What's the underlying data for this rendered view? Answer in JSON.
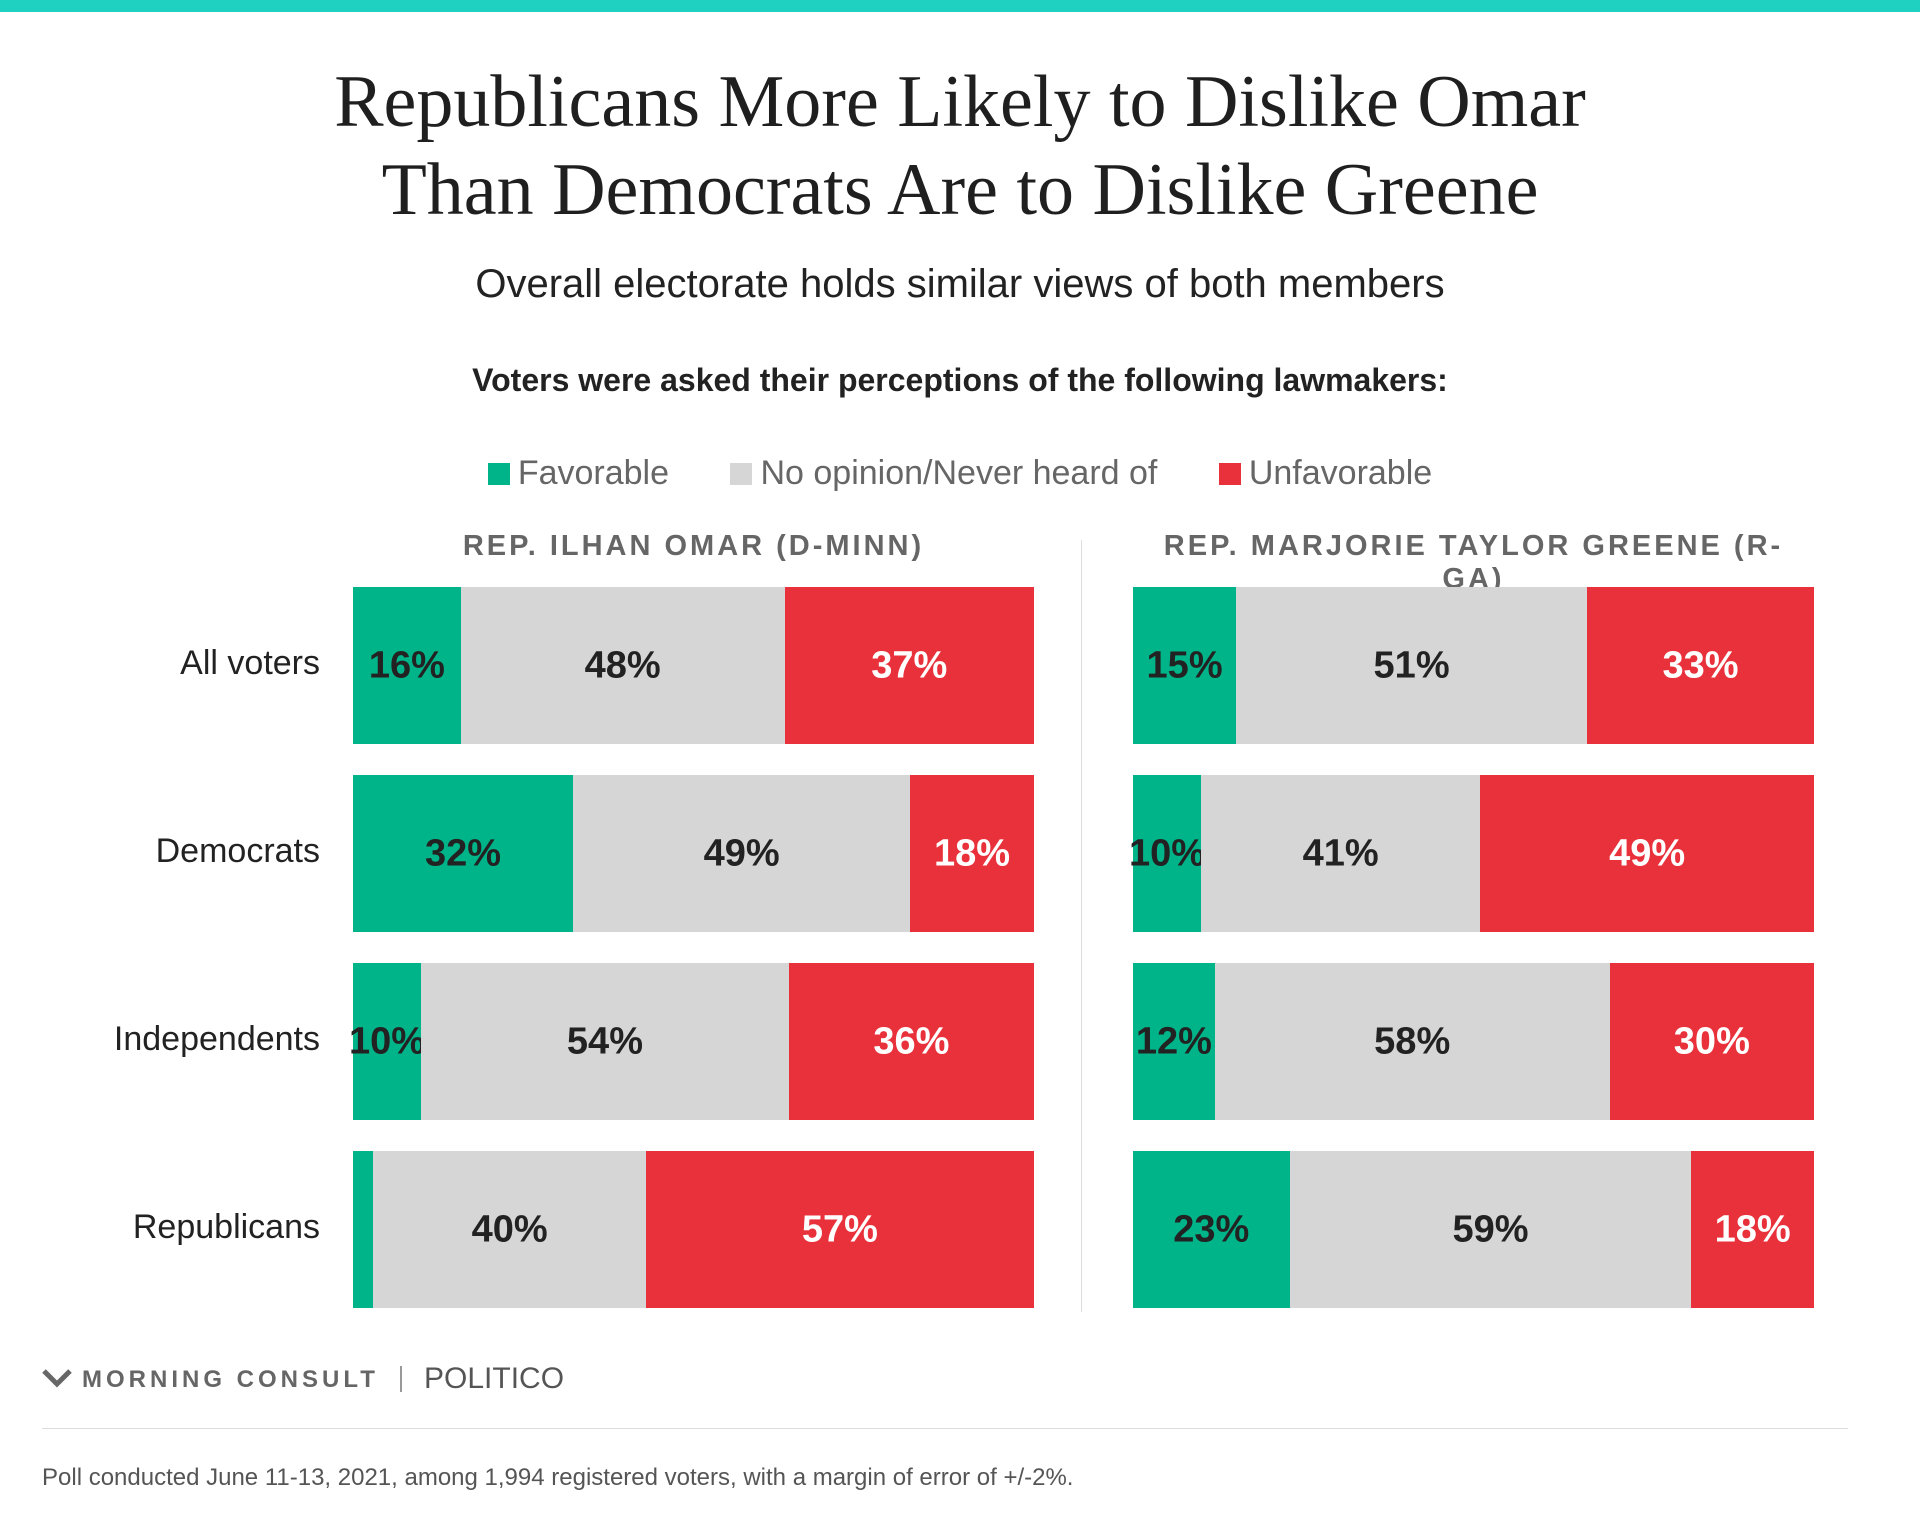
{
  "title_line1": "Republicans More Likely to Dislike Omar",
  "title_line2": "Than Democrats Are to Dislike Greene",
  "subtitle": "Overall electorate holds similar views of both members",
  "question": "Voters were asked their perceptions of the following lawmakers:",
  "colors": {
    "favorable": "#00b48a",
    "no_opinion": "#d6d6d6",
    "unfavorable": "#e8313a",
    "accent": "#1fd1c1"
  },
  "legend": [
    "Favorable",
    "No opinion/Never heard of",
    "Unfavorable"
  ],
  "chart_data": {
    "type": "bar",
    "orientation": "horizontal",
    "stacked": true,
    "normalized": true,
    "categories": [
      "All voters",
      "Democrats",
      "Independents",
      "Republicans"
    ],
    "segments": [
      "Favorable",
      "No opinion/Never heard of",
      "Unfavorable"
    ],
    "panels": [
      {
        "title": "REP. ILHAN OMAR (D-MINN)",
        "values": [
          [
            16,
            48,
            37
          ],
          [
            32,
            49,
            18
          ],
          [
            10,
            54,
            36
          ],
          [
            3,
            40,
            57
          ]
        ],
        "labels": [
          [
            "16%",
            "48%",
            "37%"
          ],
          [
            "32%",
            "49%",
            "18%"
          ],
          [
            "10%",
            "54%",
            "36%"
          ],
          [
            "",
            "40%",
            "57%"
          ]
        ]
      },
      {
        "title": "REP. MARJORIE TAYLOR GREENE (R-GA)",
        "values": [
          [
            15,
            51,
            33
          ],
          [
            10,
            41,
            49
          ],
          [
            12,
            58,
            30
          ],
          [
            23,
            59,
            18
          ]
        ],
        "labels": [
          [
            "15%",
            "51%",
            "33%"
          ],
          [
            "10%",
            "41%",
            "49%"
          ],
          [
            "12%",
            "58%",
            "30%"
          ],
          [
            "23%",
            "59%",
            "18%"
          ]
        ]
      }
    ]
  },
  "footer": {
    "brand": "MORNING CONSULT",
    "partner": "POLITICO",
    "note": "Poll conducted June 11-13, 2021, among 1,994 registered voters, with a margin of error of +/-2%."
  }
}
